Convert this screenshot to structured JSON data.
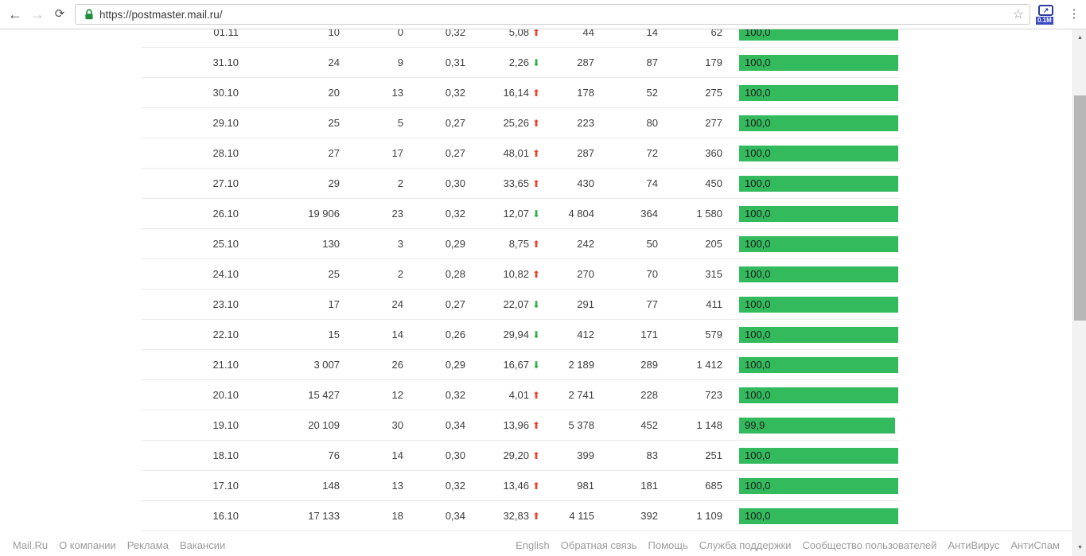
{
  "browser": {
    "url": "https://postmaster.mail.ru/",
    "back_icon": "←",
    "forward_icon": "→",
    "refresh_icon": "⟳",
    "star_icon": "☆",
    "menu_icon": "⋮",
    "extension_arrow": "↗",
    "extension_badge": "0.1M"
  },
  "colors": {
    "bar_green": "#32ba5d",
    "trend_up_red": "#e8432d",
    "trend_down_green": "#2fae4a",
    "lock_green": "#1e8e3e"
  },
  "table": {
    "trend_icons": {
      "up": "⬆",
      "down": "⬇"
    },
    "rows": [
      {
        "date": "01.11",
        "v1": "10",
        "v2": "0",
        "v3": "0,32",
        "v4": "5,08",
        "trend": "up",
        "v5": "44",
        "v6": "14",
        "v7": "62",
        "bar_label": "100,0",
        "bar_pct": 100
      },
      {
        "date": "31.10",
        "v1": "24",
        "v2": "9",
        "v3": "0,31",
        "v4": "2,26",
        "trend": "down",
        "v5": "287",
        "v6": "87",
        "v7": "179",
        "bar_label": "100,0",
        "bar_pct": 100
      },
      {
        "date": "30.10",
        "v1": "20",
        "v2": "13",
        "v3": "0,32",
        "v4": "16,14",
        "trend": "up",
        "v5": "178",
        "v6": "52",
        "v7": "275",
        "bar_label": "100,0",
        "bar_pct": 100
      },
      {
        "date": "29.10",
        "v1": "25",
        "v2": "5",
        "v3": "0,27",
        "v4": "25,26",
        "trend": "up",
        "v5": "223",
        "v6": "80",
        "v7": "277",
        "bar_label": "100,0",
        "bar_pct": 100
      },
      {
        "date": "28.10",
        "v1": "27",
        "v2": "17",
        "v3": "0,27",
        "v4": "48,01",
        "trend": "up",
        "v5": "287",
        "v6": "72",
        "v7": "360",
        "bar_label": "100,0",
        "bar_pct": 100
      },
      {
        "date": "27.10",
        "v1": "29",
        "v2": "2",
        "v3": "0,30",
        "v4": "33,65",
        "trend": "up",
        "v5": "430",
        "v6": "74",
        "v7": "450",
        "bar_label": "100,0",
        "bar_pct": 100
      },
      {
        "date": "26.10",
        "v1": "19 906",
        "v2": "23",
        "v3": "0,32",
        "v4": "12,07",
        "trend": "down",
        "v5": "4 804",
        "v6": "364",
        "v7": "1 580",
        "bar_label": "100,0",
        "bar_pct": 100
      },
      {
        "date": "25.10",
        "v1": "130",
        "v2": "3",
        "v3": "0,29",
        "v4": "8,75",
        "trend": "up",
        "v5": "242",
        "v6": "50",
        "v7": "205",
        "bar_label": "100,0",
        "bar_pct": 100
      },
      {
        "date": "24.10",
        "v1": "25",
        "v2": "2",
        "v3": "0,28",
        "v4": "10,82",
        "trend": "up",
        "v5": "270",
        "v6": "70",
        "v7": "315",
        "bar_label": "100,0",
        "bar_pct": 100
      },
      {
        "date": "23.10",
        "v1": "17",
        "v2": "24",
        "v3": "0,27",
        "v4": "22,07",
        "trend": "down",
        "v5": "291",
        "v6": "77",
        "v7": "411",
        "bar_label": "100,0",
        "bar_pct": 100
      },
      {
        "date": "22.10",
        "v1": "15",
        "v2": "14",
        "v3": "0,26",
        "v4": "29,94",
        "trend": "down",
        "v5": "412",
        "v6": "171",
        "v7": "579",
        "bar_label": "100,0",
        "bar_pct": 100
      },
      {
        "date": "21.10",
        "v1": "3 007",
        "v2": "26",
        "v3": "0,29",
        "v4": "16,67",
        "trend": "down",
        "v5": "2 189",
        "v6": "289",
        "v7": "1 412",
        "bar_label": "100,0",
        "bar_pct": 100
      },
      {
        "date": "20.10",
        "v1": "15 427",
        "v2": "12",
        "v3": "0,32",
        "v4": "4,01",
        "trend": "up",
        "v5": "2 741",
        "v6": "228",
        "v7": "723",
        "bar_label": "100,0",
        "bar_pct": 100
      },
      {
        "date": "19.10",
        "v1": "20 109",
        "v2": "30",
        "v3": "0,34",
        "v4": "13,96",
        "trend": "up",
        "v5": "5 378",
        "v6": "452",
        "v7": "1 148",
        "bar_label": "99,9",
        "bar_pct": 98
      },
      {
        "date": "18.10",
        "v1": "76",
        "v2": "14",
        "v3": "0,30",
        "v4": "29,20",
        "trend": "up",
        "v5": "399",
        "v6": "83",
        "v7": "251",
        "bar_label": "100,0",
        "bar_pct": 100
      },
      {
        "date": "17.10",
        "v1": "148",
        "v2": "13",
        "v3": "0,32",
        "v4": "13,46",
        "trend": "up",
        "v5": "981",
        "v6": "181",
        "v7": "685",
        "bar_label": "100,0",
        "bar_pct": 100
      },
      {
        "date": "16.10",
        "v1": "17 133",
        "v2": "18",
        "v3": "0,34",
        "v4": "32,83",
        "trend": "up",
        "v5": "4 115",
        "v6": "392",
        "v7": "1 109",
        "bar_label": "100,0",
        "bar_pct": 100
      }
    ]
  },
  "footer": {
    "left_links": [
      "Mail.Ru",
      "О компании",
      "Реклама",
      "Вакансии"
    ],
    "right_links": [
      "English",
      "Обратная связь",
      "Помощь",
      "Служба поддержки",
      "Сообщество пользователей",
      "АнтиВирус",
      "АнтиСпам"
    ]
  },
  "scrollbar": {
    "up_icon": "▲",
    "down_icon": "▼"
  }
}
